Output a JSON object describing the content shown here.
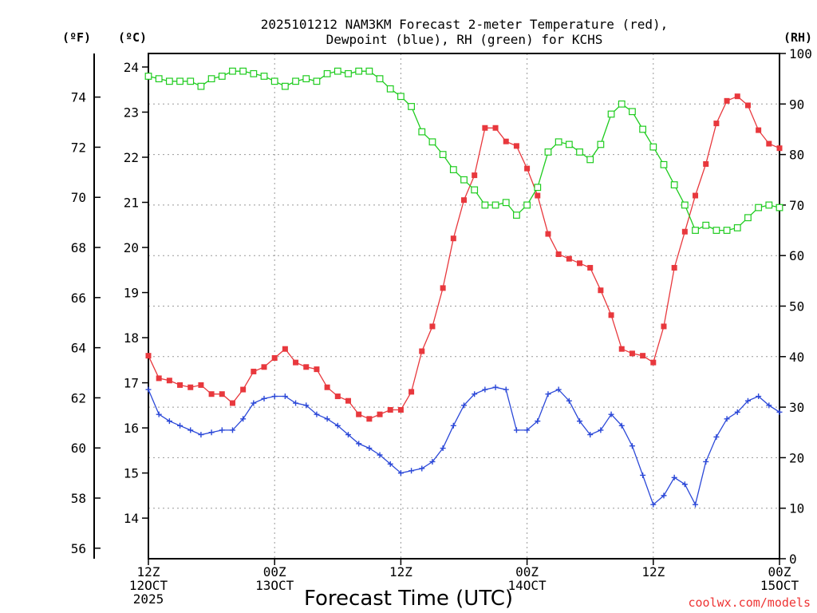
{
  "chart_data": {
    "type": "line",
    "title": "2025101212 NAM3KM Forecast 2-meter Temperature (red),",
    "subtitle": "Dewpoint (blue), RH (green) for KCHS",
    "xlabel": "Forecast Time (UTC)",
    "credit": "coolwx.com/models",
    "y_units_left_outer": "(ºF)",
    "y_units_left_inner": "(ºC)",
    "y_units_right": "(RH)",
    "x_range_hours": [
      0,
      60
    ],
    "celsius_range": [
      13.1,
      24.3
    ],
    "rh_range": [
      0,
      100
    ],
    "celsius_ticks": [
      14,
      15,
      16,
      17,
      18,
      19,
      20,
      21,
      22,
      23,
      24
    ],
    "fahrenheit_ticks": [
      56,
      58,
      60,
      62,
      64,
      66,
      68,
      70,
      72,
      74
    ],
    "rh_ticks": [
      0,
      10,
      20,
      30,
      40,
      50,
      60,
      70,
      80,
      90,
      100
    ],
    "x_ticks": [
      {
        "hour": 0,
        "lines": [
          "12Z",
          "12OCT",
          "2025"
        ]
      },
      {
        "hour": 12,
        "lines": [
          "00Z",
          "13OCT"
        ]
      },
      {
        "hour": 24,
        "lines": [
          "12Z"
        ]
      },
      {
        "hour": 36,
        "lines": [
          "00Z",
          "14OCT"
        ]
      },
      {
        "hour": 48,
        "lines": [
          "12Z"
        ]
      },
      {
        "hour": 60,
        "lines": [
          "00Z",
          "15OCT"
        ]
      }
    ],
    "series": [
      {
        "name": "2-meter Temperature",
        "units": "C",
        "color": "#e8383d",
        "marker": "filled-square",
        "values": [
          17.6,
          17.1,
          17.05,
          16.95,
          16.9,
          16.95,
          16.75,
          16.75,
          16.55,
          16.85,
          17.25,
          17.35,
          17.55,
          17.75,
          17.45,
          17.35,
          17.3,
          16.9,
          16.7,
          16.6,
          16.3,
          16.2,
          16.3,
          16.4,
          16.4,
          16.8,
          17.7,
          18.25,
          19.1,
          20.2,
          21.05,
          21.6,
          22.65,
          22.65,
          22.35,
          22.25,
          21.75,
          21.15,
          20.3,
          19.85,
          19.75,
          19.65,
          19.55,
          19.05,
          18.5,
          17.75,
          17.65,
          17.6,
          17.45,
          18.25,
          19.55,
          20.35,
          21.15,
          21.85,
          22.75,
          23.25,
          23.35,
          23.15,
          22.6,
          22.3,
          22.2
        ]
      },
      {
        "name": "Dewpoint",
        "units": "C",
        "color": "#2b48d8",
        "marker": "plus",
        "values": [
          16.85,
          16.3,
          16.15,
          16.05,
          15.95,
          15.85,
          15.9,
          15.95,
          15.95,
          16.2,
          16.55,
          16.65,
          16.7,
          16.7,
          16.55,
          16.5,
          16.3,
          16.2,
          16.05,
          15.85,
          15.65,
          15.55,
          15.4,
          15.2,
          15.0,
          15.05,
          15.1,
          15.25,
          15.55,
          16.05,
          16.5,
          16.75,
          16.85,
          16.9,
          16.85,
          15.95,
          15.95,
          16.15,
          16.75,
          16.85,
          16.6,
          16.15,
          15.85,
          15.95,
          16.3,
          16.05,
          15.6,
          14.95,
          14.3,
          14.5,
          14.9,
          14.75,
          14.3,
          15.25,
          15.8,
          16.2,
          16.35,
          16.6,
          16.7,
          16.5,
          16.35
        ]
      },
      {
        "name": "RH",
        "units": "%",
        "color": "#1fcc1f",
        "marker": "open-square",
        "values": [
          95.5,
          95.0,
          94.5,
          94.5,
          94.5,
          93.5,
          95.0,
          95.5,
          96.5,
          96.5,
          96.0,
          95.5,
          94.5,
          93.5,
          94.5,
          95.0,
          94.5,
          96.0,
          96.5,
          96.0,
          96.5,
          96.5,
          95.0,
          93.0,
          91.5,
          89.5,
          84.5,
          82.5,
          80.0,
          77.0,
          75.0,
          73.0,
          70.0,
          70.0,
          70.5,
          68.0,
          70.0,
          73.5,
          80.5,
          82.5,
          82.0,
          80.5,
          79.0,
          82.0,
          88.0,
          90.0,
          88.5,
          85.0,
          81.5,
          78.0,
          74.0,
          70.0,
          65.0,
          66.0,
          65.0,
          65.0,
          65.5,
          67.5,
          69.5,
          70.0,
          69.5
        ]
      }
    ]
  }
}
